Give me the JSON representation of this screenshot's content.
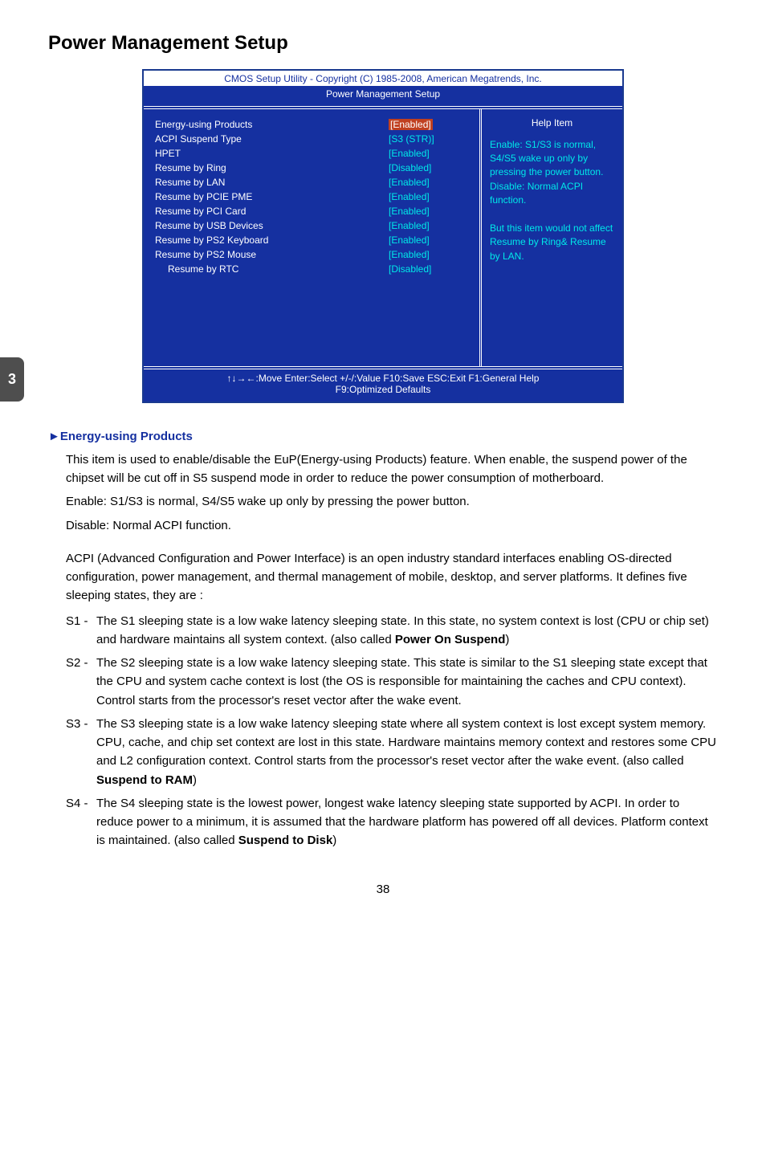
{
  "page": {
    "title": "Power Management Setup",
    "side_tab": "3",
    "footer_page": "38"
  },
  "bios": {
    "header_line1": "CMOS Setup Utility - Copyright (C) 1985-2008, American Megatrends, Inc.",
    "header_line2": "Power Management Setup",
    "help_title": "Help Item",
    "help_body": "Enable: S1/S3 is normal, S4/S5 wake up only by pressing the power button.\nDisable: Normal ACPI function.\n\nBut this item would not affect Resume by Ring& Resume by LAN.",
    "footer": "↑↓→←:Move   Enter:Select    +/-/:Value   F10:Save     ESC:Exit   F1:General Help\nF9:Optimized Defaults",
    "rows": [
      {
        "label": "Energy-using Products",
        "value": "[Enabled]",
        "highlight": true,
        "indent": false
      },
      {
        "label": "ACPI Suspend Type",
        "value": "[S3 (STR)]",
        "highlight": false,
        "indent": false
      },
      {
        "label": "HPET",
        "value": "[Enabled]",
        "highlight": false,
        "indent": false
      },
      {
        "label": "Resume by Ring",
        "value": "[Disabled]",
        "highlight": false,
        "indent": false
      },
      {
        "label": "Resume by LAN",
        "value": "[Enabled]",
        "highlight": false,
        "indent": false
      },
      {
        "label": "Resume by PCIE PME",
        "value": "[Enabled]",
        "highlight": false,
        "indent": false
      },
      {
        "label": "Resume by PCI Card",
        "value": "[Enabled]",
        "highlight": false,
        "indent": false
      },
      {
        "label": "Resume by USB Devices",
        "value": "[Enabled]",
        "highlight": false,
        "indent": false
      },
      {
        "label": "Resume by PS2 Keyboard",
        "value": "[Enabled]",
        "highlight": false,
        "indent": false
      },
      {
        "label": "Resume by PS2 Mouse",
        "value": "[Enabled]",
        "highlight": false,
        "indent": false
      },
      {
        "label": "Resume by RTC",
        "value": "[Disabled]",
        "highlight": false,
        "indent": true
      }
    ],
    "colors": {
      "bg": "#1530a0",
      "cyan": "#00e8e8",
      "highlight_bg": "#c04020"
    }
  },
  "doc": {
    "section_head": "►Energy-using Products",
    "p1": "This item is used to enable/disable the EuP(Energy-using Products) feature. When enable, the suspend power of the chipset will be cut off in S5 suspend mode in order to reduce the power consumption of motherboard.",
    "p2": "Enable: S1/S3 is normal, S4/S5 wake up only by pressing the power button.",
    "p3": "Disable: Normal ACPI function.",
    "p4": "ACPI (Advanced Configuration and Power Interface) is an open industry standard interfaces enabling OS-directed configuration, power management, and thermal management of mobile, desktop, and server platforms. It defines five sleeping states, they are :",
    "s_items": [
      {
        "label": "S1 - ",
        "text": "The S1 sleeping state is a low wake latency sleeping state. In this state, no system context is lost (CPU or chip set) and hardware maintains all system context. (also called <b>Power On Suspend</b>)"
      },
      {
        "label": "S2 - ",
        "text": "The S2 sleeping state is a low wake latency sleeping state. This state is similar to the S1 sleeping state except that the CPU and system cache context is lost (the OS is responsible for maintaining the caches and CPU context). Control starts from the processor's reset vector after the wake event."
      },
      {
        "label": "S3 - ",
        "text": "The S3 sleeping state is a low wake latency sleeping state where all system context is lost except system memory. CPU, cache, and chip set context are lost in this state. Hardware maintains memory context and restores some CPU and L2 configuration context. Control starts from the processor's reset vector after the wake event. (also called <b>Suspend to RAM</b>)"
      },
      {
        "label": "S4 - ",
        "text": "The S4 sleeping state is the lowest power, longest wake latency sleeping state supported by ACPI. In order to reduce power to a minimum, it is assumed that the hardware platform has powered off all devices. Platform context is maintained. (also called <b>Suspend to Disk</b>)"
      }
    ]
  }
}
